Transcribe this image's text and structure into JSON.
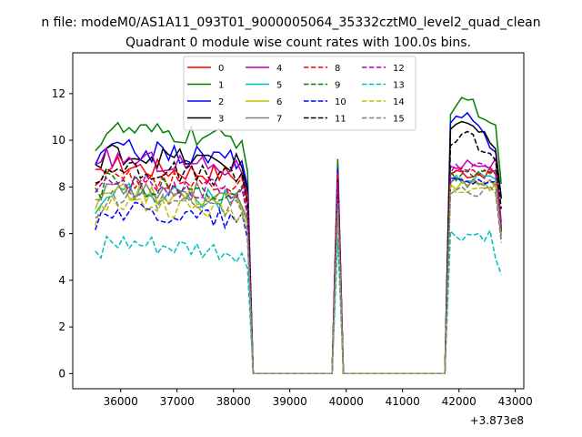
{
  "figure": {
    "suptitle": "n file: modeM0/AS1A11_093T01_9000005064_35332cztM0_level2_quad_clean",
    "title": "Quadrant 0 module wise count rates with 100.0s bins."
  },
  "chart_data": {
    "type": "line",
    "title": "Quadrant 0 module wise count rates with 100.0s bins.",
    "xlabel": "",
    "ylabel": "",
    "x_offset_label": "+3.873e8",
    "xlim": [
      35150,
      43150
    ],
    "ylim": [
      -0.65,
      13.75
    ],
    "xticks": [
      36000,
      37000,
      38000,
      39000,
      40000,
      41000,
      42000,
      43000
    ],
    "yticks": [
      0,
      2,
      4,
      6,
      8,
      10,
      12
    ],
    "grid": false,
    "legend_position": "top-center",
    "legend_columns": 4,
    "series": [
      {
        "name": "0",
        "color": "#ff0000",
        "dash": "solid",
        "base": 8.7,
        "gap": 9.0,
        "post": 8.6,
        "post_profile": "shoulder"
      },
      {
        "name": "1",
        "color": "#008000",
        "dash": "solid",
        "base": 10.2,
        "gap": 9.2,
        "post": 11.3,
        "post_profile": "peak"
      },
      {
        "name": "2",
        "color": "#0000ff",
        "dash": "solid",
        "base": 9.4,
        "gap": 8.8,
        "post": 10.5,
        "post_profile": "peak"
      },
      {
        "name": "3",
        "color": "#000000",
        "dash": "solid",
        "base": 9.2,
        "gap": 8.6,
        "post": 10.4,
        "post_profile": "peak"
      },
      {
        "name": "4",
        "color": "#bf00bf",
        "dash": "solid",
        "base": 9.0,
        "gap": 8.6,
        "post": 9.0,
        "post_profile": "shoulder"
      },
      {
        "name": "5",
        "color": "#00bfbf",
        "dash": "solid",
        "base": 7.6,
        "gap": 7.6,
        "post": 8.4,
        "post_profile": "shoulder"
      },
      {
        "name": "6",
        "color": "#bfbf00",
        "dash": "solid",
        "base": 7.6,
        "gap": 7.4,
        "post": 8.0,
        "post_profile": "shoulder"
      },
      {
        "name": "7",
        "color": "#808080",
        "dash": "solid",
        "base": 7.8,
        "gap": 7.8,
        "post": 8.2,
        "post_profile": "shoulder"
      },
      {
        "name": "8",
        "color": "#ff0000",
        "dash": "dashed",
        "base": 8.2,
        "gap": 8.4,
        "post": 8.7,
        "post_profile": "shoulder"
      },
      {
        "name": "9",
        "color": "#008000",
        "dash": "dashed",
        "base": 7.9,
        "gap": 8.0,
        "post": 8.5,
        "post_profile": "shoulder"
      },
      {
        "name": "10",
        "color": "#0000ff",
        "dash": "dashed",
        "base": 6.8,
        "gap": 7.2,
        "post": 8.3,
        "post_profile": "shoulder"
      },
      {
        "name": "11",
        "color": "#000000",
        "dash": "dashed",
        "base": 8.6,
        "gap": 8.3,
        "post": 9.8,
        "post_profile": "peak"
      },
      {
        "name": "12",
        "color": "#bf00bf",
        "dash": "dashed",
        "base": 8.0,
        "gap": 8.2,
        "post": 8.8,
        "post_profile": "shoulder"
      },
      {
        "name": "13",
        "color": "#00bfbf",
        "dash": "dashed",
        "base": 5.3,
        "gap": 5.8,
        "post": 5.9,
        "post_profile": "low"
      },
      {
        "name": "14",
        "color": "#bfbf00",
        "dash": "dashed",
        "base": 7.1,
        "gap": 7.0,
        "post": 8.0,
        "post_profile": "shoulder"
      },
      {
        "name": "15",
        "color": "#808080",
        "dash": "dashed",
        "base": 7.2,
        "gap": 7.3,
        "post": 7.8,
        "post_profile": "shoulder"
      }
    ]
  }
}
